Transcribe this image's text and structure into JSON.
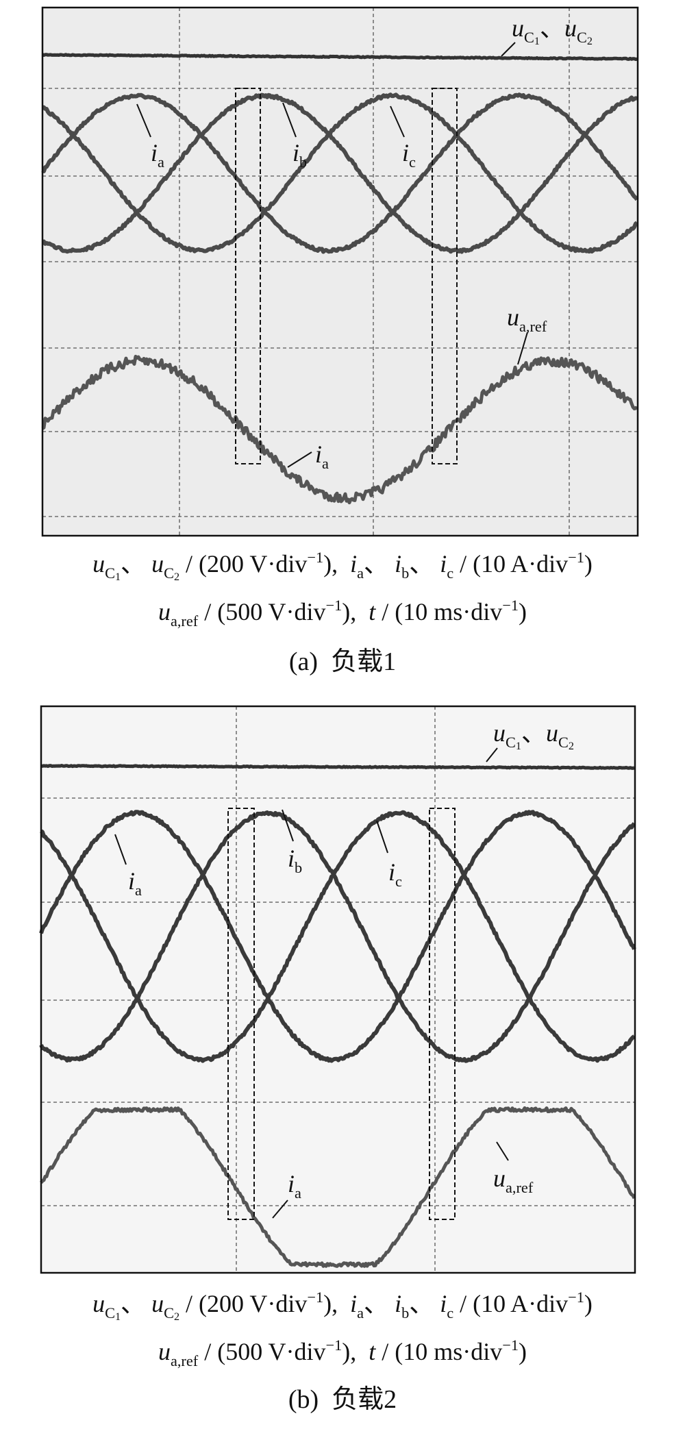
{
  "panels": [
    {
      "labels": [
        [
          {
            "t": "u",
            "s": "i"
          },
          {
            "t": "C",
            "s": "sub"
          },
          {
            "t": "1",
            "s": "sub2"
          },
          {
            "t": "、",
            "s": "n"
          },
          {
            "t": "u",
            "s": "i"
          },
          {
            "t": "C",
            "s": "sub"
          },
          {
            "t": "2",
            "s": "sub2"
          }
        ],
        [
          {
            "t": "i",
            "s": "i"
          },
          {
            "t": "a",
            "s": "sub"
          }
        ],
        [
          {
            "t": "i",
            "s": "i"
          },
          {
            "t": "b",
            "s": "sub"
          }
        ],
        [
          {
            "t": "i",
            "s": "i"
          },
          {
            "t": "c",
            "s": "sub"
          }
        ],
        [
          {
            "t": "u",
            "s": "i"
          },
          {
            "t": "a,ref",
            "s": "sub"
          }
        ],
        [
          {
            "t": "i",
            "s": "i"
          },
          {
            "t": "a",
            "s": "sub"
          }
        ]
      ],
      "caption": [
        [
          {
            "t": "u",
            "s": "i"
          },
          {
            "t": "C",
            "s": "sub"
          },
          {
            "t": "1",
            "s": "sub2"
          },
          {
            "t": "、 ",
            "s": "n"
          },
          {
            "t": "u",
            "s": "i"
          },
          {
            "t": "C",
            "s": "sub"
          },
          {
            "t": "2",
            "s": "sub2"
          },
          {
            "t": " / (200 V·div",
            "s": "n"
          },
          {
            "t": "−1",
            "s": "sup"
          },
          {
            "t": "),  ",
            "s": "n"
          },
          {
            "t": "i",
            "s": "i"
          },
          {
            "t": "a",
            "s": "sub"
          },
          {
            "t": "、 ",
            "s": "n"
          },
          {
            "t": "i",
            "s": "i"
          },
          {
            "t": "b",
            "s": "sub"
          },
          {
            "t": "、 ",
            "s": "n"
          },
          {
            "t": "i",
            "s": "i"
          },
          {
            "t": "c",
            "s": "sub"
          },
          {
            "t": " / (10 A·div",
            "s": "n"
          },
          {
            "t": "−1",
            "s": "sup"
          },
          {
            "t": ")",
            "s": "n"
          }
        ],
        [
          {
            "t": "u",
            "s": "i"
          },
          {
            "t": "a,ref",
            "s": "sub"
          },
          {
            "t": " / (500 V·div",
            "s": "n"
          },
          {
            "t": "−1",
            "s": "sup"
          },
          {
            "t": "),  ",
            "s": "n"
          },
          {
            "t": "t",
            "s": "i"
          },
          {
            "t": " / (10 ms·div",
            "s": "n"
          },
          {
            "t": "−1",
            "s": "sup"
          },
          {
            "t": ")",
            "s": "n"
          }
        ],
        [
          {
            "t": "(a)  负载1",
            "s": "n"
          }
        ]
      ]
    },
    {
      "labels": [
        [
          {
            "t": "u",
            "s": "i"
          },
          {
            "t": "C",
            "s": "sub"
          },
          {
            "t": "1",
            "s": "sub2"
          },
          {
            "t": "、",
            "s": "n"
          },
          {
            "t": "u",
            "s": "i"
          },
          {
            "t": "C",
            "s": "sub"
          },
          {
            "t": "2",
            "s": "sub2"
          }
        ],
        [
          {
            "t": "i",
            "s": "i"
          },
          {
            "t": "a",
            "s": "sub"
          }
        ],
        [
          {
            "t": "i",
            "s": "i"
          },
          {
            "t": "b",
            "s": "sub"
          }
        ],
        [
          {
            "t": "i",
            "s": "i"
          },
          {
            "t": "c",
            "s": "sub"
          }
        ],
        [
          {
            "t": "i",
            "s": "i"
          },
          {
            "t": "a",
            "s": "sub"
          }
        ],
        [
          {
            "t": "u",
            "s": "i"
          },
          {
            "t": "a,ref",
            "s": "sub"
          }
        ]
      ],
      "caption": [
        [
          {
            "t": "u",
            "s": "i"
          },
          {
            "t": "C",
            "s": "sub"
          },
          {
            "t": "1",
            "s": "sub2"
          },
          {
            "t": "、 ",
            "s": "n"
          },
          {
            "t": "u",
            "s": "i"
          },
          {
            "t": "C",
            "s": "sub"
          },
          {
            "t": "2",
            "s": "sub2"
          },
          {
            "t": " / (200 V·div",
            "s": "n"
          },
          {
            "t": "−1",
            "s": "sup"
          },
          {
            "t": "),  ",
            "s": "n"
          },
          {
            "t": "i",
            "s": "i"
          },
          {
            "t": "a",
            "s": "sub"
          },
          {
            "t": "、 ",
            "s": "n"
          },
          {
            "t": "i",
            "s": "i"
          },
          {
            "t": "b",
            "s": "sub"
          },
          {
            "t": "、 ",
            "s": "n"
          },
          {
            "t": "i",
            "s": "i"
          },
          {
            "t": "c",
            "s": "sub"
          },
          {
            "t": " / (10 A·div",
            "s": "n"
          },
          {
            "t": "−1",
            "s": "sup"
          },
          {
            "t": ")",
            "s": "n"
          }
        ],
        [
          {
            "t": "u",
            "s": "i"
          },
          {
            "t": "a,ref",
            "s": "sub"
          },
          {
            "t": " / (500 V·div",
            "s": "n"
          },
          {
            "t": "−1",
            "s": "sup"
          },
          {
            "t": "),  ",
            "s": "n"
          },
          {
            "t": "t",
            "s": "i"
          },
          {
            "t": " / (10 ms·div",
            "s": "n"
          },
          {
            "t": "−1",
            "s": "sup"
          },
          {
            "t": ")",
            "s": "n"
          }
        ],
        [
          {
            "t": "(b)  负载2",
            "s": "n"
          }
        ]
      ]
    }
  ]
}
